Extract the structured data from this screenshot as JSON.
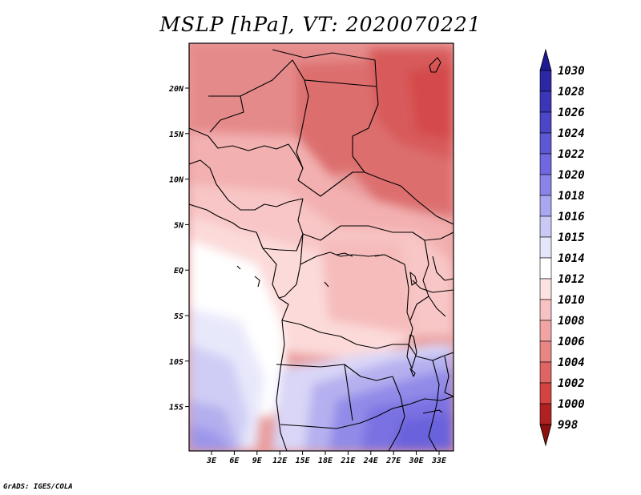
{
  "title": "MSLP [hPa], VT: 2020070221",
  "footer": "GrADS: IGES/COLA",
  "x_ticks": [
    "3E",
    "6E",
    "9E",
    "12E",
    "15E",
    "18E",
    "21E",
    "24E",
    "27E",
    "30E",
    "33E"
  ],
  "y_ticks": [
    "20N",
    "15N",
    "10N",
    "5N",
    "EQ",
    "5S",
    "10S",
    "15S"
  ],
  "colorbar": {
    "levels": [
      "1030",
      "1028",
      "1026",
      "1024",
      "1022",
      "1020",
      "1018",
      "1016",
      "1015",
      "1014",
      "1012",
      "1010",
      "1008",
      "1006",
      "1004",
      "1002",
      "1000",
      "998"
    ],
    "colors": [
      "#1f1a94",
      "#2a28a5",
      "#3a36b8",
      "#4b45c8",
      "#5b58d4",
      "#7068e0",
      "#8b84e8",
      "#aaa6ef",
      "#cac8f5",
      "#e6e6fb",
      "#ffffff",
      "#fde2e2",
      "#f8c2c2",
      "#f2a3a3",
      "#e98585",
      "#df6464",
      "#d54242",
      "#b02222",
      "#8c1010"
    ]
  }
}
